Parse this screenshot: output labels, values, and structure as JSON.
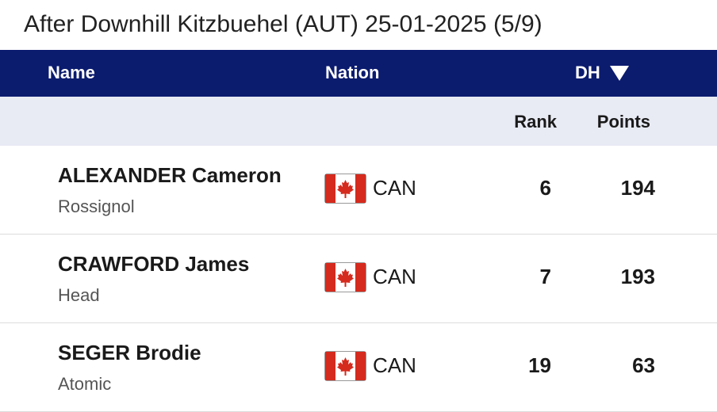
{
  "title": "After Downhill Kitzbuehel (AUT) 25-01-2025 (5/9)",
  "table": {
    "header": {
      "name": "Name",
      "nation": "Nation",
      "discipline": "DH"
    },
    "subheader": {
      "rank": "Rank",
      "points": "Points"
    },
    "rows": [
      {
        "name": "ALEXANDER Cameron",
        "brand": "Rossignol",
        "nation": "CAN",
        "rank": "6",
        "points": "194"
      },
      {
        "name": "CRAWFORD James",
        "brand": "Head",
        "nation": "CAN",
        "rank": "7",
        "points": "193"
      },
      {
        "name": "SEGER Brodie",
        "brand": "Atomic",
        "nation": "CAN",
        "rank": "19",
        "points": "63"
      }
    ]
  }
}
